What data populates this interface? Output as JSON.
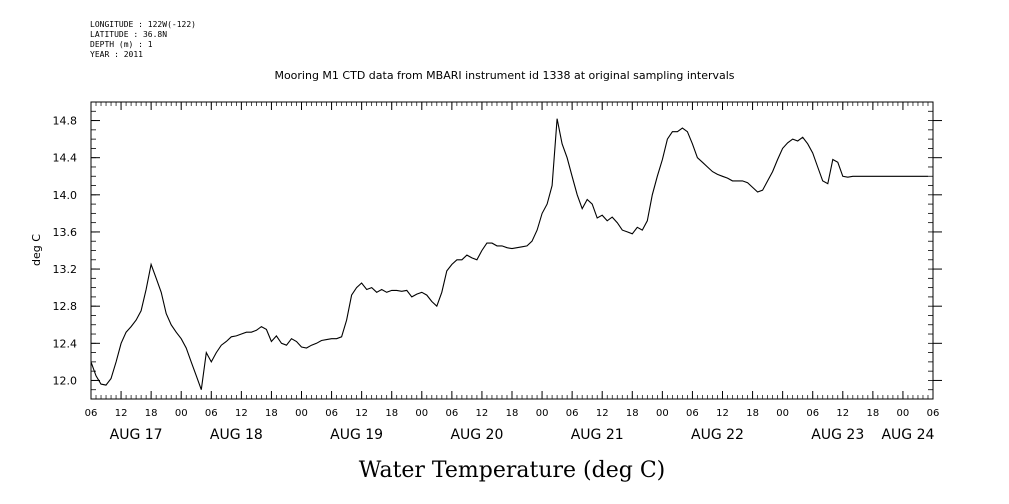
{
  "header": {
    "longitude": "LONGITUDE : 122W(-122)",
    "latitude": "LATITUDE : 36.8N",
    "depth": "DEPTH (m) : 1",
    "year": "YEAR : 2011"
  },
  "chart_data": {
    "type": "line",
    "title": "Mooring M1 CTD data from MBARI instrument id 1338 at original sampling intervals",
    "ylabel": "deg C",
    "xlabel": "Water Temperature (deg C)",
    "ylim": [
      11.8,
      15.0
    ],
    "yticks": [
      12.0,
      12.4,
      12.8,
      13.2,
      13.6,
      14.0,
      14.4,
      14.8
    ],
    "ytick_labels": [
      "12.0",
      "12.4",
      "12.8",
      "13.2",
      "13.6",
      "14.0",
      "14.4",
      "14.8"
    ],
    "x_hours_range": [
      0,
      168
    ],
    "xticks_hour_labels": [
      "06",
      "12",
      "18",
      "00",
      "06",
      "12",
      "18",
      "00",
      "06",
      "12",
      "18",
      "00",
      "06",
      "12",
      "18",
      "00",
      "06",
      "12",
      "18",
      "00",
      "06",
      "12",
      "18",
      "00",
      "06",
      "12",
      "18",
      "00",
      "06"
    ],
    "date_labels": [
      {
        "label": "AUG 17",
        "hour": 9
      },
      {
        "label": "AUG 18",
        "hour": 29
      },
      {
        "label": "AUG 19",
        "hour": 53
      },
      {
        "label": "AUG 20",
        "hour": 77
      },
      {
        "label": "AUG 21",
        "hour": 101
      },
      {
        "label": "AUG 22",
        "hour": 125
      },
      {
        "label": "AUG 23",
        "hour": 149
      },
      {
        "label": "AUG 24",
        "hour": 163
      }
    ],
    "grid": false,
    "series": [
      {
        "x": [
          0,
          1,
          2,
          3,
          4,
          5,
          6,
          7,
          8,
          9,
          10,
          11,
          12,
          13,
          14,
          15,
          16,
          17,
          18,
          19,
          20,
          21,
          22,
          23,
          24,
          25,
          26,
          27,
          28,
          29,
          30,
          31,
          32,
          33,
          34,
          35,
          36,
          37,
          38,
          39,
          40,
          41,
          42,
          43,
          44,
          45,
          46,
          47,
          48,
          49,
          50,
          51,
          52,
          53,
          54,
          55,
          56,
          57,
          58,
          59,
          60,
          61,
          62,
          63,
          64,
          65,
          66,
          67,
          68,
          69,
          70,
          71,
          72,
          73,
          74,
          75,
          76,
          77,
          78,
          79,
          80,
          81,
          82,
          83,
          84,
          85,
          86,
          87,
          88,
          89,
          90,
          91,
          92,
          93,
          94,
          95,
          96,
          97,
          98,
          99,
          100,
          101,
          102,
          103,
          104,
          105,
          106,
          107,
          108,
          109,
          110,
          111,
          112,
          113,
          114,
          115,
          116,
          117,
          118,
          119,
          120,
          121,
          122,
          123,
          124,
          125,
          126,
          127,
          128,
          129,
          130,
          131,
          132,
          133,
          134,
          135,
          136,
          137,
          138,
          139,
          140,
          141,
          142,
          143,
          144,
          145,
          146,
          147,
          148,
          149,
          150,
          151,
          152,
          153,
          154,
          155,
          156,
          157,
          158,
          159,
          160,
          161,
          162,
          163,
          164,
          165,
          166,
          167
        ],
        "y": [
          12.2,
          12.05,
          11.96,
          11.95,
          12.02,
          12.2,
          12.4,
          12.52,
          12.58,
          12.65,
          12.75,
          12.98,
          13.25,
          13.1,
          12.95,
          12.72,
          12.6,
          12.52,
          12.45,
          12.35,
          12.2,
          12.05,
          11.9,
          12.3,
          12.2,
          12.3,
          12.38,
          12.42,
          12.47,
          12.48,
          12.5,
          12.52,
          12.52,
          12.54,
          12.58,
          12.55,
          12.42,
          12.48,
          12.4,
          12.38,
          12.45,
          12.42,
          12.36,
          12.35,
          12.38,
          12.4,
          12.43,
          12.44,
          12.45,
          12.45,
          12.47,
          12.65,
          12.92,
          13.0,
          13.05,
          12.98,
          13.0,
          12.95,
          12.98,
          12.95,
          12.97,
          12.97,
          12.96,
          12.97,
          12.9,
          12.93,
          12.95,
          12.92,
          12.85,
          12.8,
          12.95,
          13.18,
          13.25,
          13.3,
          13.3,
          13.35,
          13.32,
          13.3,
          13.4,
          13.48,
          13.48,
          13.45,
          13.45,
          13.43,
          13.42,
          13.43,
          13.44,
          13.45,
          13.5,
          13.62,
          13.8,
          13.9,
          14.1,
          14.82,
          14.55,
          14.4,
          14.2,
          14.0,
          13.85,
          13.95,
          13.9,
          13.75,
          13.78,
          13.72,
          13.76,
          13.7,
          13.62,
          13.6,
          13.58,
          13.65,
          13.62,
          13.72,
          14.0,
          14.2,
          14.38,
          14.6,
          14.68,
          14.68,
          14.72,
          14.68,
          14.55,
          14.4,
          14.35,
          14.3,
          14.25,
          14.22,
          14.2,
          14.18,
          14.15,
          14.15,
          14.15,
          14.13,
          14.08,
          14.03,
          14.05,
          14.15,
          14.25,
          14.38,
          14.5,
          14.56,
          14.6,
          14.58,
          14.62,
          14.55,
          14.45,
          14.3,
          14.15,
          14.12,
          14.38,
          14.35,
          14.2,
          14.19,
          14.2,
          14.2,
          14.2,
          14.2,
          14.2,
          14.2,
          14.2,
          14.2,
          14.2,
          14.2,
          14.2,
          14.2,
          14.2,
          14.2,
          14.2,
          14.2
        ]
      }
    ]
  }
}
